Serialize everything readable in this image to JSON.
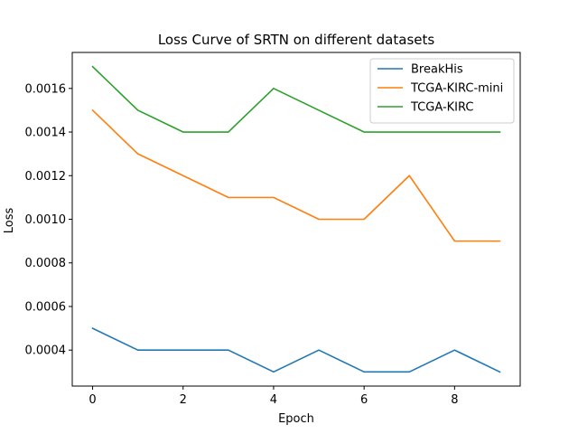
{
  "chart_data": {
    "type": "line",
    "title": "Loss Curve of SRTN on different datasets",
    "xlabel": "Epoch",
    "ylabel": "Loss",
    "x": [
      0,
      1,
      2,
      3,
      4,
      5,
      6,
      7,
      8,
      9
    ],
    "xlim": [
      -0.45,
      9.45
    ],
    "ylim": [
      0.000235,
      0.001765
    ],
    "xticks": [
      0,
      2,
      4,
      6,
      8
    ],
    "xtick_labels": [
      "0",
      "2",
      "4",
      "6",
      "8"
    ],
    "yticks": [
      0.0004,
      0.0006,
      0.0008,
      0.001,
      0.0012,
      0.0014,
      0.0016
    ],
    "ytick_labels": [
      "0.0004",
      "0.0006",
      "0.0008",
      "0.0010",
      "0.0012",
      "0.0014",
      "0.0016"
    ],
    "grid": false,
    "legend_position": "top-right",
    "series": [
      {
        "name": "BreakHis",
        "color": "#1f77b4",
        "values": [
          0.0005,
          0.0004,
          0.0004,
          0.0004,
          0.0003,
          0.0004,
          0.0003,
          0.0003,
          0.0004,
          0.0003
        ]
      },
      {
        "name": "TCGA-KIRC-mini",
        "color": "#ff7f0e",
        "values": [
          0.0015,
          0.0013,
          0.0012,
          0.0011,
          0.0011,
          0.001,
          0.001,
          0.0012,
          0.0009,
          0.0009
        ]
      },
      {
        "name": "TCGA-KIRC",
        "color": "#2ca02c",
        "values": [
          0.0017,
          0.0015,
          0.0014,
          0.0014,
          0.0016,
          0.0015,
          0.0014,
          0.0014,
          0.0014,
          0.0014
        ]
      }
    ]
  }
}
